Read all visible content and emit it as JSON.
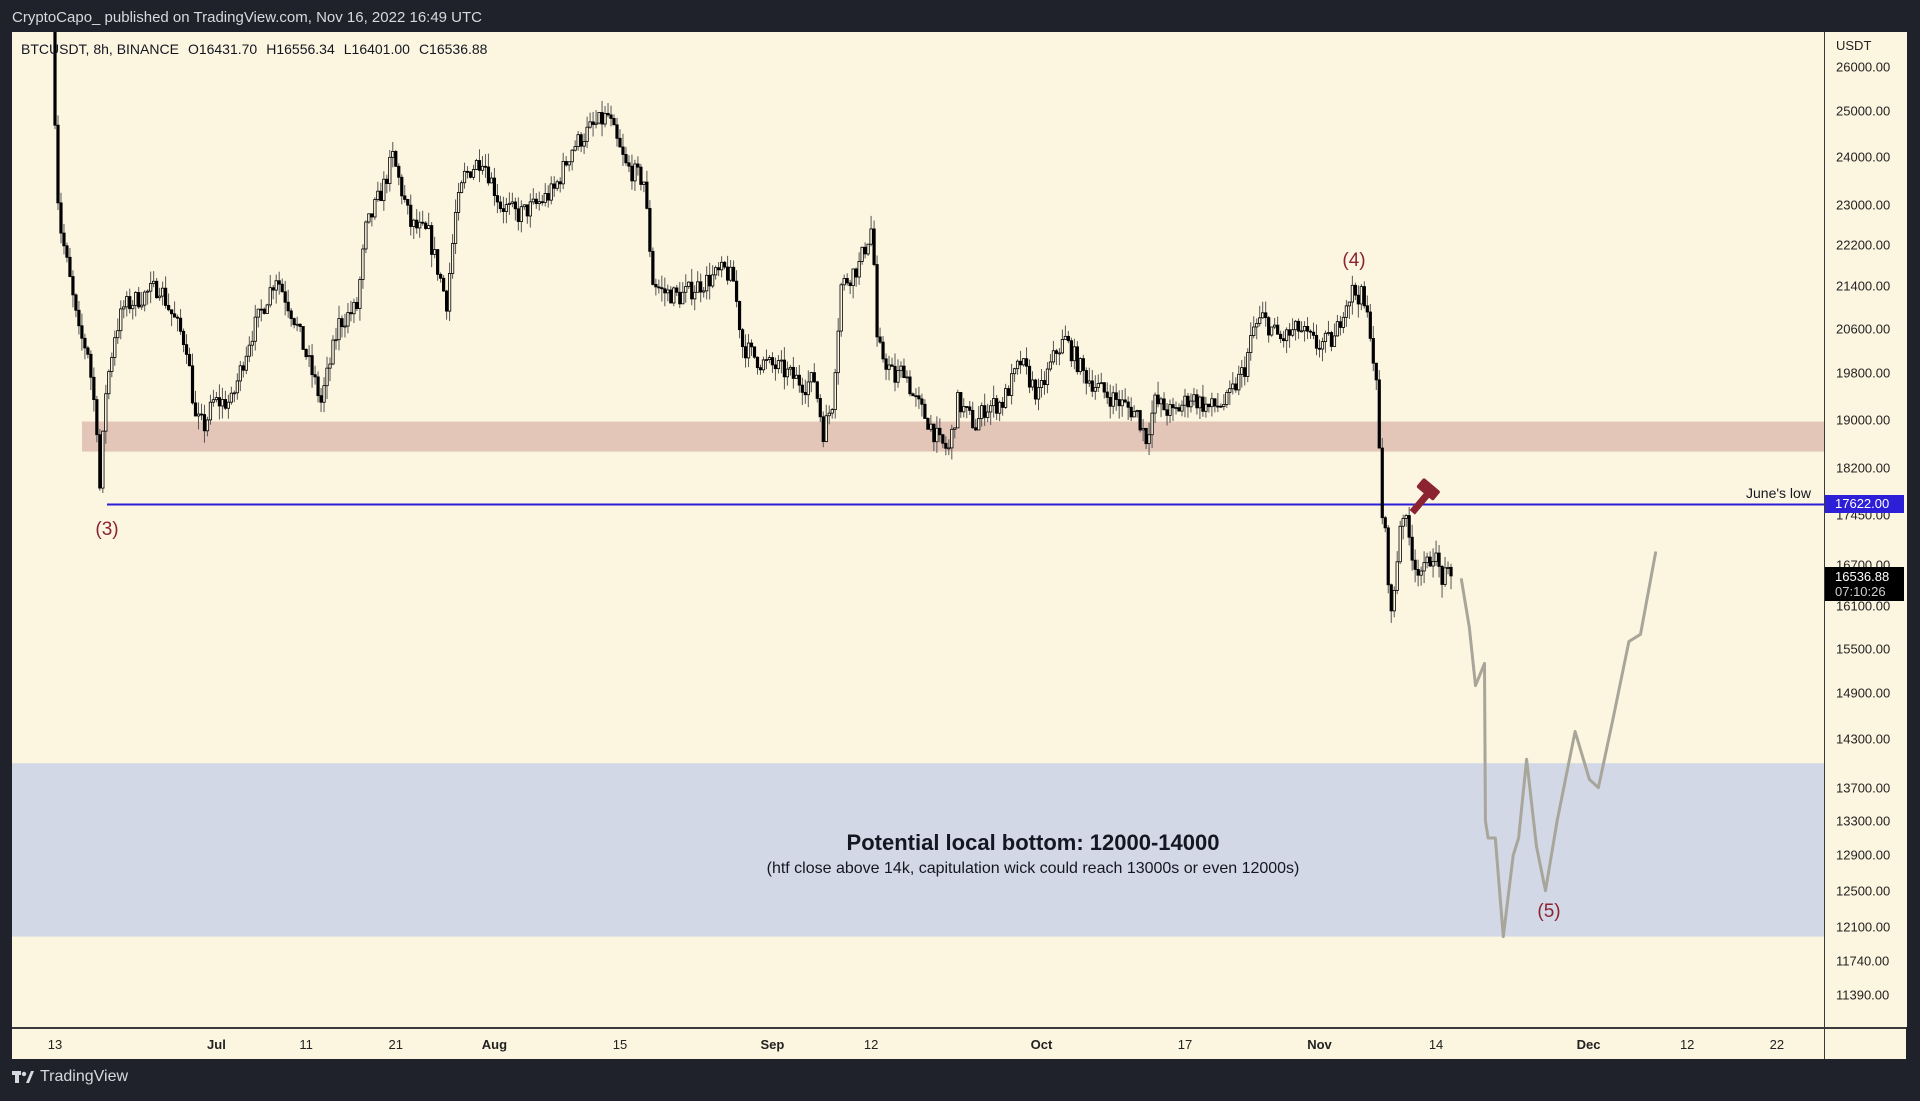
{
  "header": {
    "published": "CryptoCapo_ published on TradingView.com, Nov 16, 2022 16:49 UTC"
  },
  "legend": {
    "symbol": "BTCUSDT, 8h, BINANCE",
    "open": "O16431.70",
    "high": "H16556.34",
    "low": "L16401.00",
    "close": "C16536.88"
  },
  "price_axis": {
    "unit": "USDT",
    "ticks": [
      "26000.00",
      "25000.00",
      "24000.00",
      "23000.00",
      "22200.00",
      "21400.00",
      "20600.00",
      "19800.00",
      "19000.00",
      "18200.00",
      "17450.00",
      "16700.00",
      "16100.00",
      "15500.00",
      "14900.00",
      "14300.00",
      "13700.00",
      "13300.00",
      "12900.00",
      "12500.00",
      "12100.00",
      "11740.00",
      "11390.00"
    ],
    "june_low_tag": "17622.00",
    "last_price_tag": "16536.88",
    "countdown": "07:10:26"
  },
  "time_axis": {
    "labels": [
      {
        "text": "13",
        "day": 0,
        "bold": false
      },
      {
        "text": "Jul",
        "day": 18,
        "bold": true
      },
      {
        "text": "11",
        "day": 28,
        "bold": false
      },
      {
        "text": "21",
        "day": 38,
        "bold": false
      },
      {
        "text": "Aug",
        "day": 49,
        "bold": true
      },
      {
        "text": "15",
        "day": 63,
        "bold": false
      },
      {
        "text": "Sep",
        "day": 80,
        "bold": true
      },
      {
        "text": "12",
        "day": 91,
        "bold": false
      },
      {
        "text": "Oct",
        "day": 110,
        "bold": true
      },
      {
        "text": "17",
        "day": 126,
        "bold": false
      },
      {
        "text": "Nov",
        "day": 141,
        "bold": true
      },
      {
        "text": "14",
        "day": 154,
        "bold": false
      },
      {
        "text": "Dec",
        "day": 171,
        "bold": true
      },
      {
        "text": "12",
        "day": 182,
        "bold": false
      },
      {
        "text": "22",
        "day": 192,
        "bold": false
      }
    ]
  },
  "annotations": {
    "wave3": "(3)",
    "wave4": "(4)",
    "wave5": "(5)",
    "june_low_label": "June's low",
    "bottom_title": "Potential local bottom: 12000-14000",
    "bottom_sub": "(htf close above 14k, capitulation wick could reach 13000s or even 12000s)"
  },
  "colors": {
    "background": "#fcf5e0",
    "june_low": "#2d1fd8",
    "resistance_zone": "#e3c6b8",
    "bottom_zone": "#d3d8e6",
    "wave_label": "#8b2331",
    "projection": "#a8a69a"
  },
  "footer": {
    "brand": "TradingView"
  },
  "chart_data": {
    "type": "candlestick",
    "symbol": "BTCUSDT",
    "interval": "8h",
    "exchange": "BINANCE",
    "x_unit": "days since Jun 13 2022",
    "price_scale": "log",
    "ylim": [
      11100,
      26700
    ],
    "approx_close_path": [
      [
        0,
        28000
      ],
      [
        0.5,
        23500
      ],
      [
        1,
        22500
      ],
      [
        2,
        21500
      ],
      [
        3,
        20500
      ],
      [
        4,
        20200
      ],
      [
        5,
        18900
      ],
      [
        5.3,
        17800
      ],
      [
        6,
        19500
      ],
      [
        7,
        20500
      ],
      [
        8,
        21000
      ],
      [
        10,
        21200
      ],
      [
        12,
        21400
      ],
      [
        13,
        21000
      ],
      [
        15,
        20300
      ],
      [
        16,
        19000
      ],
      [
        17,
        18900
      ],
      [
        18,
        19300
      ],
      [
        20,
        19300
      ],
      [
        22,
        20400
      ],
      [
        25,
        21600
      ],
      [
        27,
        20800
      ],
      [
        29,
        19800
      ],
      [
        30,
        19300
      ],
      [
        32,
        20700
      ],
      [
        34,
        21000
      ],
      [
        35,
        22500
      ],
      [
        37,
        23400
      ],
      [
        38,
        24000
      ],
      [
        40,
        22600
      ],
      [
        42,
        22400
      ],
      [
        44,
        21100
      ],
      [
        45,
        22800
      ],
      [
        46,
        23600
      ],
      [
        48,
        24000
      ],
      [
        50,
        23000
      ],
      [
        52,
        22800
      ],
      [
        54,
        23000
      ],
      [
        56,
        23300
      ],
      [
        58,
        24200
      ],
      [
        60,
        24600
      ],
      [
        62,
        24900
      ],
      [
        63,
        24300
      ],
      [
        64,
        23800
      ],
      [
        66,
        23500
      ],
      [
        67,
        21500
      ],
      [
        68,
        21300
      ],
      [
        70,
        21200
      ],
      [
        73,
        21500
      ],
      [
        75,
        21700
      ],
      [
        76,
        21500
      ],
      [
        77,
        20300
      ],
      [
        79,
        20000
      ],
      [
        81,
        19900
      ],
      [
        84,
        19600
      ],
      [
        85,
        19700
      ],
      [
        86,
        18800
      ],
      [
        87,
        19300
      ],
      [
        88,
        21400
      ],
      [
        90,
        21800
      ],
      [
        91.5,
        22600
      ],
      [
        92,
        20300
      ],
      [
        94,
        19700
      ],
      [
        95,
        19900
      ],
      [
        96,
        19400
      ],
      [
        98,
        18900
      ],
      [
        99,
        18600
      ],
      [
        100,
        18500
      ],
      [
        101,
        19300
      ],
      [
        103,
        18900
      ],
      [
        104,
        19200
      ],
      [
        106,
        19300
      ],
      [
        108,
        20000
      ],
      [
        110,
        19400
      ],
      [
        112,
        20200
      ],
      [
        113,
        20400
      ],
      [
        115,
        19800
      ],
      [
        117,
        19500
      ],
      [
        119,
        19300
      ],
      [
        121,
        19100
      ],
      [
        122,
        18700
      ],
      [
        123,
        19300
      ],
      [
        125,
        19100
      ],
      [
        127,
        19400
      ],
      [
        129,
        19200
      ],
      [
        131,
        19300
      ],
      [
        133,
        19900
      ],
      [
        134,
        20600
      ],
      [
        135,
        20800
      ],
      [
        137,
        20400
      ],
      [
        139,
        20600
      ],
      [
        141,
        20300
      ],
      [
        143,
        20400
      ],
      [
        144,
        21000
      ],
      [
        145,
        21300
      ],
      [
        146,
        21200
      ],
      [
        147,
        20600
      ],
      [
        147.7,
        19500
      ],
      [
        148.3,
        17500
      ],
      [
        148.8,
        17000
      ],
      [
        149.3,
        15900
      ],
      [
        149.8,
        16500
      ],
      [
        150.5,
        17600
      ],
      [
        151,
        17300
      ],
      [
        152,
        16700
      ],
      [
        153,
        16600
      ],
      [
        154,
        16900
      ],
      [
        155,
        16500
      ],
      [
        156,
        16537
      ]
    ],
    "projection_path": [
      [
        156.8,
        16500
      ],
      [
        157.7,
        15800
      ],
      [
        158.4,
        15000
      ],
      [
        159.4,
        15300
      ],
      [
        159.5,
        13300
      ],
      [
        159.8,
        13100
      ],
      [
        160.6,
        13100
      ],
      [
        161.5,
        12000
      ],
      [
        162.6,
        12900
      ],
      [
        163.2,
        13100
      ],
      [
        164.1,
        14050
      ],
      [
        165.2,
        13000
      ],
      [
        166.2,
        12500
      ],
      [
        167.5,
        13300
      ],
      [
        169.5,
        14400
      ],
      [
        171.1,
        13800
      ],
      [
        172.1,
        13700
      ],
      [
        173.8,
        14600
      ],
      [
        175.5,
        15600
      ],
      [
        176.8,
        15700
      ],
      [
        178.5,
        16900
      ]
    ],
    "levels": {
      "june_low": 17622,
      "resistance_zone": [
        18470,
        18970
      ],
      "bottom_zone": [
        12000,
        14000
      ]
    }
  }
}
